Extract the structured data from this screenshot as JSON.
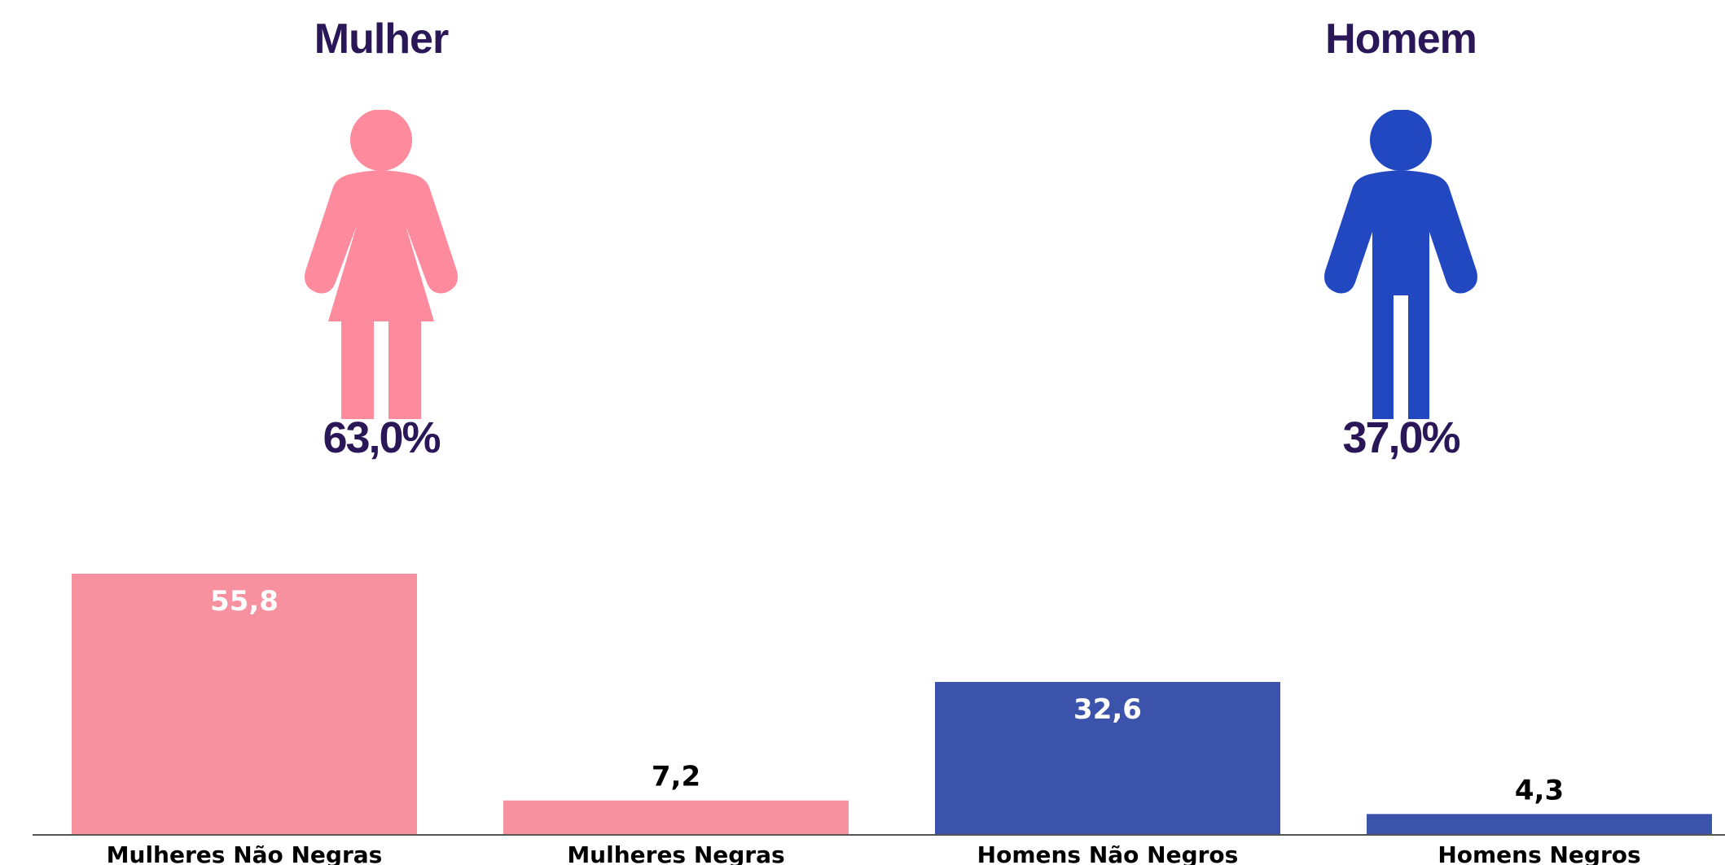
{
  "gender_summary": {
    "female": {
      "title": "Mulher",
      "percent_label": "63,0%",
      "percent": 63.0,
      "color": "#fd8a9d",
      "icon": "woman-icon"
    },
    "male": {
      "title": "Homem",
      "percent_label": "37,0%",
      "percent": 37.0,
      "color": "#2248c1",
      "icon": "man-icon"
    }
  },
  "chart_data": {
    "type": "bar",
    "title": "",
    "xlabel": "",
    "ylabel": "",
    "categories": [
      "Mulheres Não Negras",
      "Mulheres Negras",
      "Homens Não Negros",
      "Homens Negros"
    ],
    "values": [
      55.8,
      7.2,
      32.6,
      4.3
    ],
    "value_labels": [
      "55,8",
      "7,2",
      "32,6",
      "4,3"
    ],
    "colors": [
      "#f7919f",
      "#f7919f",
      "#3c53ac",
      "#3c53ac"
    ],
    "label_colors": [
      "#ffffff",
      "#000000",
      "#ffffff",
      "#000000"
    ],
    "label_inside": [
      true,
      false,
      true,
      false
    ],
    "ylim": [
      0,
      55.8
    ],
    "grid": false,
    "legend": "none"
  }
}
